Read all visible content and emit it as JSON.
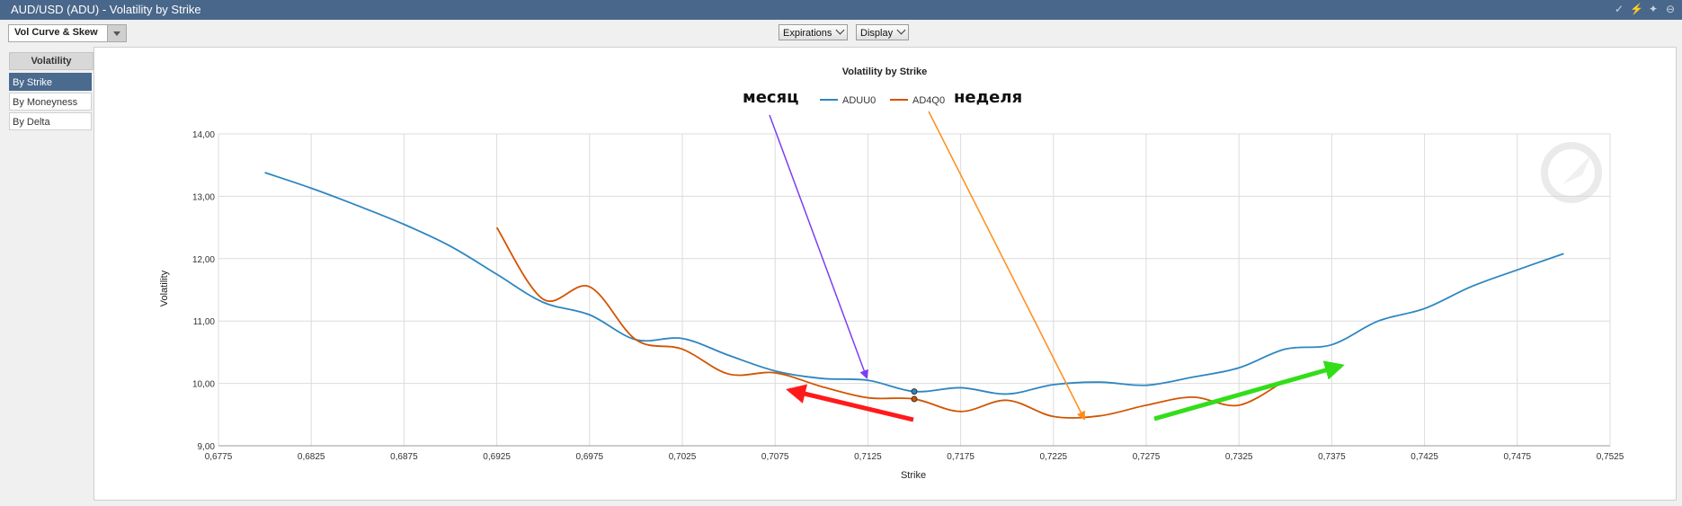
{
  "window": {
    "title": "AUD/USD (ADU) - Volatility by Strike",
    "icons": [
      "check-icon",
      "bolt-icon",
      "twitter-icon",
      "collapse-icon"
    ]
  },
  "toolbar": {
    "view_select": "Vol Curve & Skew",
    "expirations_label": "Expirations",
    "display_label": "Display"
  },
  "sidebar": {
    "header": "Volatility",
    "items": [
      {
        "label": "By Strike",
        "active": true
      },
      {
        "label": "By Moneyness",
        "active": false
      },
      {
        "label": "By Delta",
        "active": false
      }
    ]
  },
  "annotations": {
    "month_label": "месяц",
    "week_label": "неделя"
  },
  "chart_data": {
    "type": "line",
    "title": "Volatility by Strike",
    "xlabel": "Strike",
    "ylabel": "Volatility",
    "xlim": [
      0.6775,
      0.7525
    ],
    "ylim": [
      9.0,
      14.0
    ],
    "xticks": [
      "0,6775",
      "0,6825",
      "0,6875",
      "0,6925",
      "0,6975",
      "0,7025",
      "0,7075",
      "0,7125",
      "0,7175",
      "0,7225",
      "0,7275",
      "0,7325",
      "0,7375",
      "0,7425",
      "0,7475",
      "0,7525"
    ],
    "yticks": [
      "9,00",
      "10,00",
      "11,00",
      "12,00",
      "13,00",
      "14,00"
    ],
    "grid": true,
    "legend_position": "top-center",
    "series": [
      {
        "name": "ADUU0",
        "color": "#2e86c1",
        "points": [
          [
            0.68,
            13.38
          ],
          [
            0.6825,
            13.13
          ],
          [
            0.685,
            12.85
          ],
          [
            0.6875,
            12.55
          ],
          [
            0.69,
            12.2
          ],
          [
            0.6925,
            11.75
          ],
          [
            0.695,
            11.3
          ],
          [
            0.6975,
            11.1
          ],
          [
            0.7,
            10.7
          ],
          [
            0.7025,
            10.72
          ],
          [
            0.705,
            10.45
          ],
          [
            0.7075,
            10.2
          ],
          [
            0.71,
            10.08
          ],
          [
            0.7125,
            10.05
          ],
          [
            0.715,
            9.87
          ],
          [
            0.7175,
            9.93
          ],
          [
            0.72,
            9.83
          ],
          [
            0.7225,
            9.98
          ],
          [
            0.725,
            10.02
          ],
          [
            0.7275,
            9.97
          ],
          [
            0.73,
            10.1
          ],
          [
            0.7325,
            10.25
          ],
          [
            0.735,
            10.55
          ],
          [
            0.7375,
            10.62
          ],
          [
            0.74,
            11.0
          ],
          [
            0.7425,
            11.2
          ],
          [
            0.745,
            11.55
          ],
          [
            0.7475,
            11.82
          ],
          [
            0.75,
            12.08
          ]
        ]
      },
      {
        "name": "AD4Q0",
        "color": "#d35400",
        "points": [
          [
            0.6925,
            12.5
          ],
          [
            0.695,
            11.35
          ],
          [
            0.6975,
            11.55
          ],
          [
            0.7,
            10.7
          ],
          [
            0.7025,
            10.55
          ],
          [
            0.705,
            10.15
          ],
          [
            0.7075,
            10.17
          ],
          [
            0.71,
            9.95
          ],
          [
            0.7125,
            9.77
          ],
          [
            0.715,
            9.75
          ],
          [
            0.7175,
            9.55
          ],
          [
            0.72,
            9.73
          ],
          [
            0.7225,
            9.47
          ],
          [
            0.725,
            9.48
          ],
          [
            0.7275,
            9.65
          ],
          [
            0.73,
            9.78
          ],
          [
            0.7325,
            9.65
          ],
          [
            0.735,
            10.05
          ]
        ]
      }
    ],
    "highlight_x": 0.715
  }
}
